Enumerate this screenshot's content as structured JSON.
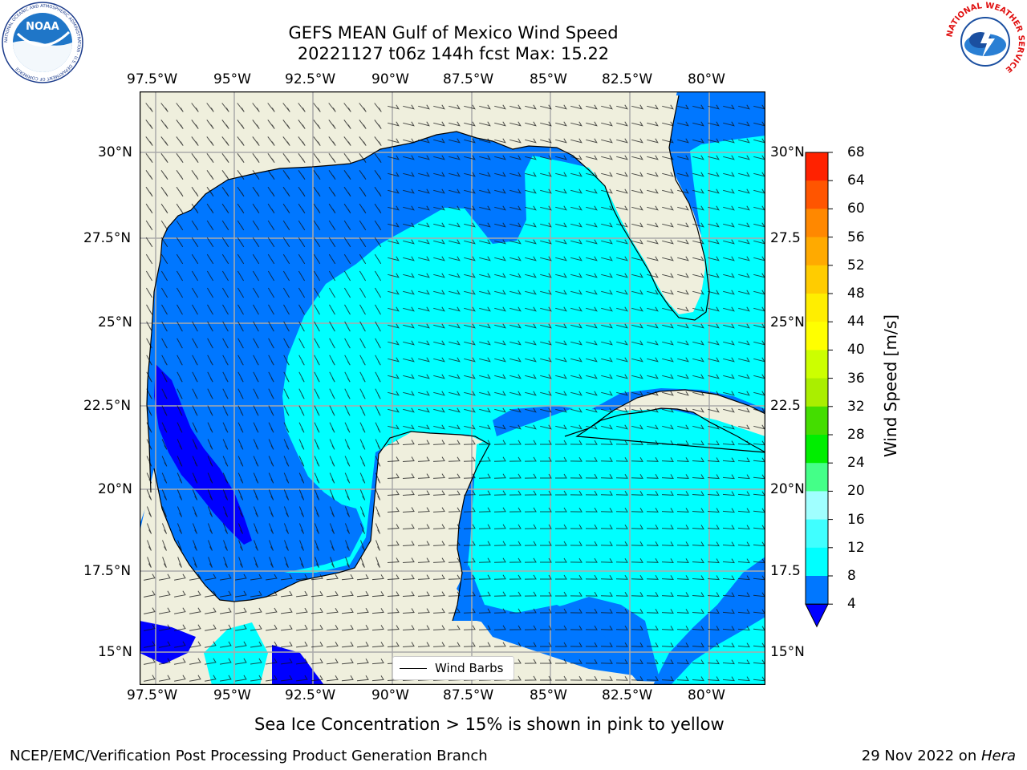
{
  "header": {
    "title_line1": "GEFS MEAN Gulf of Mexico Wind Speed",
    "title_line2": "20221127 t06z 144h fcst   Max: 15.22"
  },
  "logos": {
    "noaa_text": "NOAA",
    "noaa_ring": "NATIONAL OCEANIC AND ATMOSPHERIC ADMINISTRATION · U.S. DEPARTMENT OF COMMERCE",
    "nws_ring": "NATIONAL WEATHER SERVICE"
  },
  "axes": {
    "lon_labels": [
      "97.5°W",
      "95°W",
      "92.5°W",
      "90°W",
      "87.5°W",
      "85°W",
      "82.5°W",
      "80°W"
    ],
    "lat_labels_left": [
      "30°N",
      "27.5°N",
      "25°N",
      "22.5°N",
      "20°N",
      "17.5°N",
      "15°N"
    ],
    "lat_labels_right": [
      "30°N",
      "27.5",
      "25°N",
      "22.5",
      "20°N",
      "17.5",
      "15°N"
    ]
  },
  "legend": {
    "label": "Wind Barbs"
  },
  "colorbar": {
    "label": "Wind Speed [m/s]",
    "ticks": [
      "4",
      "8",
      "12",
      "16",
      "20",
      "24",
      "28",
      "32",
      "36",
      "40",
      "44",
      "48",
      "52",
      "56",
      "60",
      "64",
      "68"
    ],
    "colors": [
      "#0077ff",
      "#00ffff",
      "#40ffff",
      "#a0ffff",
      "#44ff88",
      "#00ee00",
      "#44dd00",
      "#aaee00",
      "#ccff00",
      "#ffff00",
      "#ffee00",
      "#ffcc00",
      "#ffaa00",
      "#ff8800",
      "#ff5500",
      "#ff2200"
    ],
    "under_color": "#0000ff"
  },
  "colors": {
    "land": "#efefdd",
    "blue": "#0077ff",
    "cyan": "#00ffff",
    "deep_blue": "#0000ff",
    "grid": "#aaaaaa"
  },
  "footer": {
    "note": "Sea Ice Concentration > 15% is shown in pink to yellow",
    "left": "NCEP/EMC/Verification Post Processing Product Generation Branch",
    "right_prefix": "29 Nov 2022 on ",
    "right_host": "Hera"
  }
}
